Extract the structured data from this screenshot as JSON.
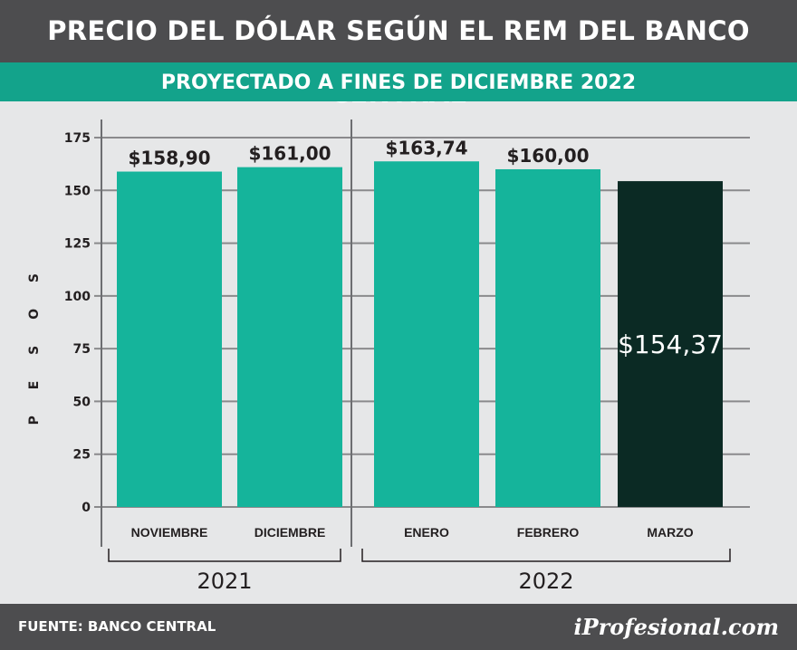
{
  "header": {
    "title": "PRECIO DEL DÓLAR SEGÚN EL REM DEL BANCO CENTRAL",
    "subtitle": "PROYECTADO A FINES DE DICIEMBRE 2022"
  },
  "footer": {
    "source": "FUENTE: BANCO CENTRAL",
    "logo": "iProfesional.com"
  },
  "colors": {
    "teal": "#15b49b",
    "dark": "#0b2a24",
    "header_bg": "#4d4d4f",
    "subheader_bg": "#13a38b",
    "background": "#e6e7e8"
  },
  "chart_data": {
    "type": "bar",
    "ylabel": "P E S O S",
    "ylim": [
      0,
      175
    ],
    "yticks": [
      0,
      25,
      50,
      75,
      100,
      125,
      150,
      175
    ],
    "grid": true,
    "categories": [
      "NOVIEMBRE",
      "DICIEMBRE",
      "ENERO",
      "FEBRERO",
      "MARZO"
    ],
    "values": [
      158.9,
      161.0,
      163.74,
      160.0,
      154.37
    ],
    "data_labels": [
      "$158,90",
      "$161,00",
      "$163,74",
      "$160,00",
      "$154,37"
    ],
    "highlight_index": 4,
    "groups": [
      {
        "label": "2021",
        "categories": [
          "NOVIEMBRE",
          "DICIEMBRE"
        ]
      },
      {
        "label": "2022",
        "categories": [
          "ENERO",
          "FEBRERO",
          "MARZO"
        ]
      }
    ]
  }
}
